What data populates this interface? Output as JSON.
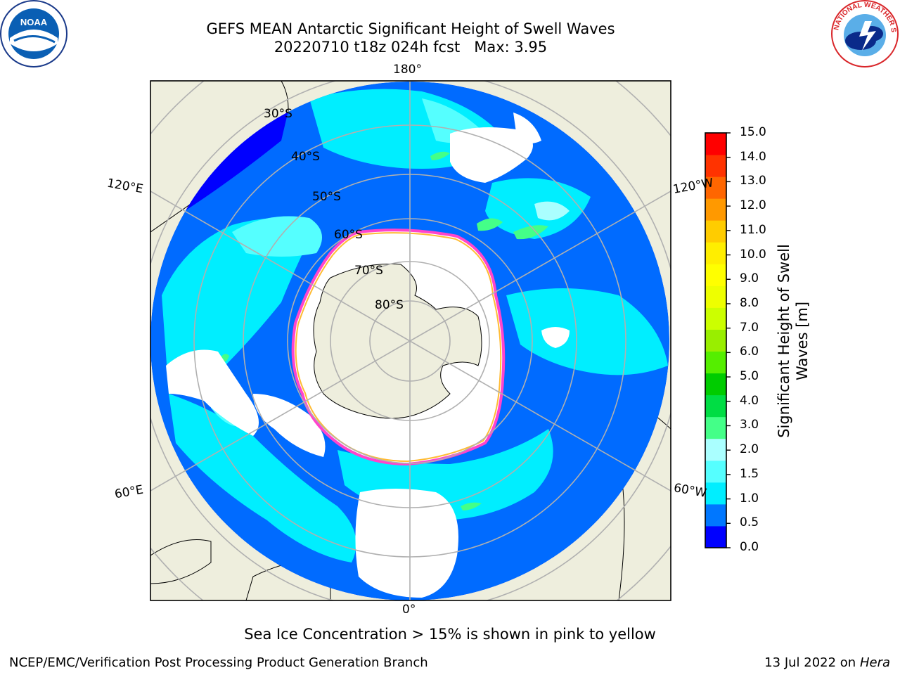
{
  "header": {
    "title_line1": "GEFS MEAN Antarctic Significant Height of Swell Waves",
    "title_line2": "20220710 t18z 024h fcst   Max: 3.95"
  },
  "logos": {
    "left": "NOAA",
    "right": "NATIONAL WEATHER SERVICE"
  },
  "map": {
    "projection": "south-polar-stereographic",
    "longitude_labels": {
      "top": "180°",
      "bottom": "0°",
      "left_upper": "120°E",
      "left_lower": "60°E",
      "right_upper": "120°W",
      "right_lower": "60°W"
    },
    "latitude_labels": [
      "30°S",
      "40°S",
      "50°S",
      "60°S",
      "70°S",
      "80°S"
    ],
    "colors": {
      "land": "#eeeedd",
      "ocean_low": "#0022ff",
      "ice_edge": "#ff44cc",
      "ice_fill": "#ffffff"
    }
  },
  "colorbar": {
    "label_line1": "Significant Height of Swell",
    "label_line2": "Waves [m]",
    "ticks": [
      "15.0",
      "14.0",
      "13.0",
      "12.0",
      "11.0",
      "10.0",
      "9.0",
      "8.0",
      "7.0",
      "6.0",
      "5.0",
      "4.0",
      "3.0",
      "2.0",
      "1.5",
      "1.0",
      "0.5",
      "0.0"
    ],
    "colors_bottom_to_top": [
      "#0000ff",
      "#0077ff",
      "#00eeff",
      "#55ffff",
      "#aaffff",
      "#44ff88",
      "#00dd44",
      "#00cc00",
      "#55ee00",
      "#99ee00",
      "#ccff00",
      "#eeff00",
      "#ffff00",
      "#ffee00",
      "#ffcc00",
      "#ff9900",
      "#ff6600",
      "#ff3300",
      "#ff0000"
    ]
  },
  "footer": {
    "note": "Sea Ice Concentration > 15% is shown in pink to yellow",
    "credit": "NCEP/EMC/Verification Post Processing Product Generation Branch",
    "date": "13 Jul 2022 on",
    "machine": "Hera"
  }
}
